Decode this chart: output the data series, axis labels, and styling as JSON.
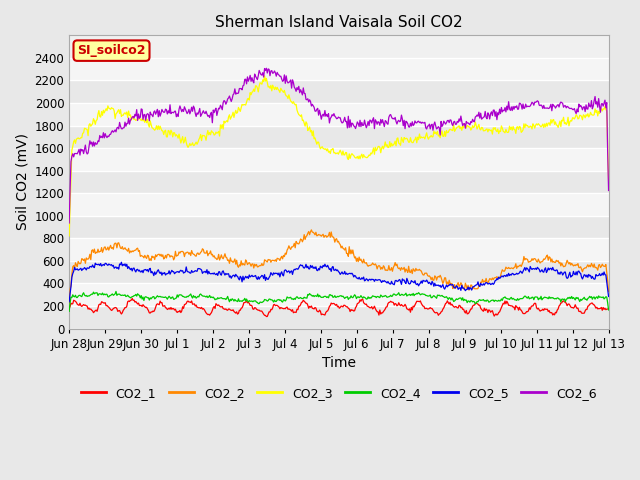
{
  "title": "Sherman Island Vaisala Soil CO2",
  "ylabel": "Soil CO2 (mV)",
  "xlabel": "Time",
  "legend_label": "SI_soilco2",
  "ylim": [
    0,
    2600
  ],
  "yticks": [
    0,
    200,
    400,
    600,
    800,
    1000,
    1200,
    1400,
    1600,
    1800,
    2000,
    2200,
    2400
  ],
  "xtick_labels": [
    "Jun 28",
    "Jun 29",
    "Jun 30",
    "Jul 1",
    "Jul 2",
    "Jul 3",
    "Jul 4",
    "Jul 5",
    "Jul 6",
    "Jul 7",
    "Jul 8",
    "Jul 9",
    "Jul 10",
    "Jul 11",
    "Jul 12",
    "Jul 13"
  ],
  "series_colors": {
    "CO2_1": "#ff0000",
    "CO2_2": "#ff8800",
    "CO2_3": "#ffff00",
    "CO2_4": "#00cc00",
    "CO2_5": "#0000ee",
    "CO2_6": "#aa00cc"
  },
  "fig_bg": "#e8e8e8",
  "plot_bg_light": "#f0f0f0",
  "plot_bg_dark": "#e0e0e0",
  "grid_color": "#ffffff",
  "title_fontsize": 11,
  "axis_fontsize": 10,
  "tick_fontsize": 8.5
}
